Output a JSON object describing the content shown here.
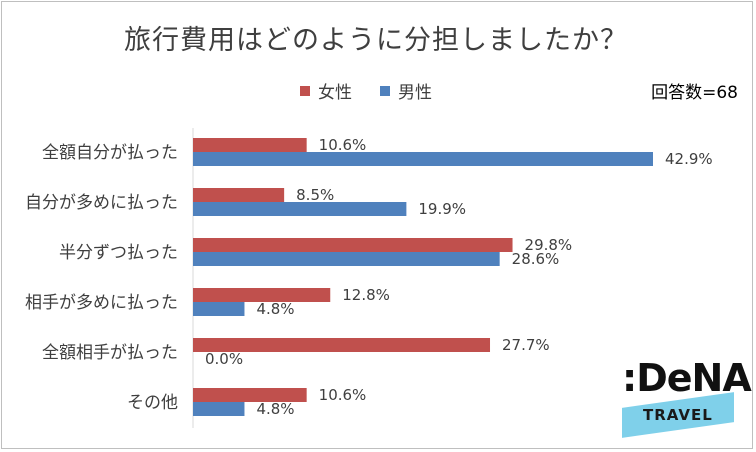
{
  "title": "旅行費用はどのように分担しましたか？",
  "respondents": "回答数=68",
  "logo": {
    "brand": ":DeNA",
    "sub": "TRAVEL"
  },
  "colors": {
    "female": "#c0504d",
    "male": "#4f81bd"
  },
  "chart_data": {
    "type": "bar",
    "orientation": "horizontal",
    "title": "旅行費用はどのように分担しましたか？",
    "categories": [
      "全額自分が払った",
      "自分が多めに払った",
      "半分ずつ払った",
      "相手が多めに払った",
      "全額相手が払った",
      "その他"
    ],
    "series": [
      {
        "name": "女性",
        "values": [
          10.6,
          8.5,
          29.8,
          12.8,
          27.7,
          10.6
        ],
        "labels": [
          "10.6%",
          "8.5%",
          "29.8%",
          "12.8%",
          "27.7%",
          "10.6%"
        ]
      },
      {
        "name": "男性",
        "values": [
          42.9,
          19.9,
          28.6,
          4.8,
          0.0,
          4.8
        ],
        "labels": [
          "42.9%",
          "19.9%",
          "28.6%",
          "4.8%",
          "0.0%",
          "4.8%"
        ]
      }
    ],
    "xlim": [
      0,
      60
    ],
    "legend": "top",
    "grid": false
  }
}
